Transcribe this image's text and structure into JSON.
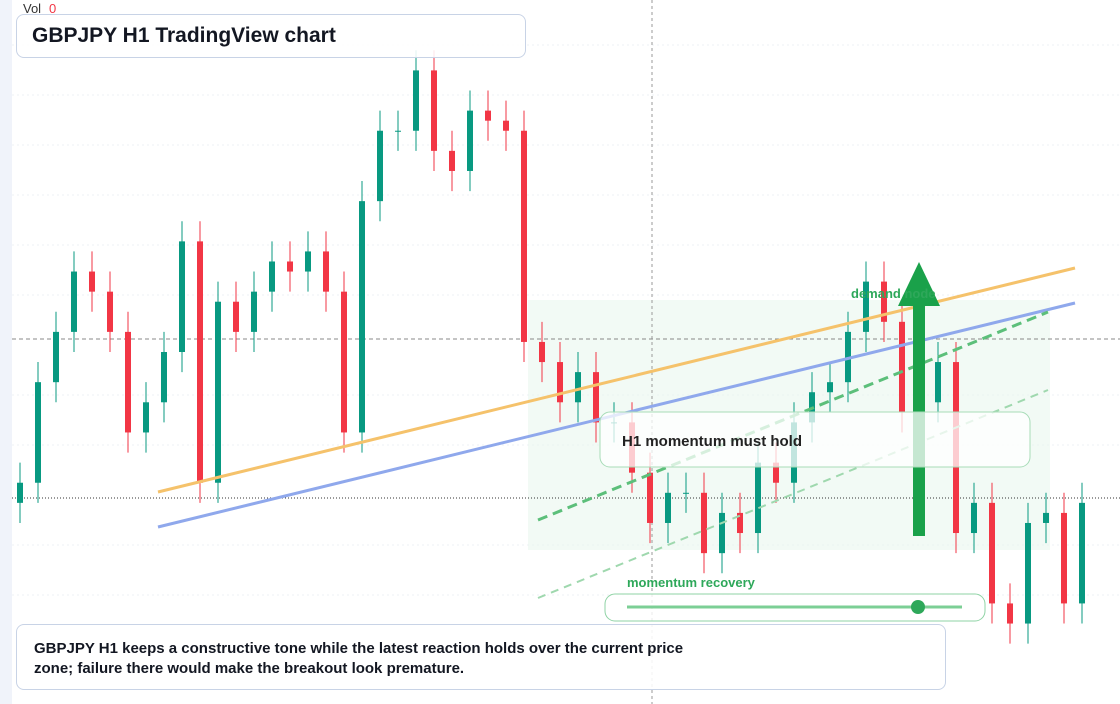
{
  "chart_data": {
    "type": "candlestick",
    "title": "GBPJPY H1 TradingView chart",
    "volume_label": "Vol",
    "volume_value": "0",
    "annotations": {
      "callout": "H1 momentum must hold",
      "zone": "demand node",
      "bar": "momentum recovery"
    },
    "summary": "GBPJPY H1 keeps a constructive tone while the latest reaction holds over the current price zone; failure there would make the breakout look premature.",
    "up_color": "#089981",
    "down_color": "#f23645",
    "ylim": [
      0,
      700
    ],
    "open": [
      200,
      220,
      320,
      370,
      430,
      410,
      370,
      270,
      300,
      350,
      460,
      220,
      400,
      370,
      410,
      440,
      430,
      450,
      410,
      270,
      500,
      570,
      570,
      630,
      550,
      530,
      590,
      580,
      570,
      360,
      340,
      300,
      330,
      280,
      280,
      230,
      180,
      210,
      210,
      150,
      190,
      170,
      240,
      220,
      280,
      310,
      320,
      370,
      420,
      380,
      290,
      300,
      340,
      170,
      200,
      100,
      80,
      180,
      190,
      100
    ],
    "high": [
      240,
      340,
      390,
      450,
      450,
      430,
      390,
      320,
      370,
      480,
      480,
      420,
      420,
      430,
      460,
      460,
      470,
      470,
      430,
      520,
      590,
      590,
      650,
      650,
      570,
      610,
      610,
      600,
      590,
      380,
      360,
      350,
      350,
      300,
      300,
      250,
      230,
      230,
      230,
      210,
      210,
      260,
      260,
      300,
      330,
      340,
      390,
      440,
      440,
      400,
      320,
      360,
      360,
      220,
      220,
      120,
      200,
      210,
      210,
      220
    ],
    "low": [
      180,
      200,
      300,
      350,
      390,
      350,
      250,
      250,
      280,
      330,
      200,
      200,
      350,
      350,
      390,
      410,
      410,
      390,
      250,
      250,
      480,
      550,
      550,
      530,
      510,
      510,
      560,
      550,
      340,
      320,
      280,
      280,
      260,
      260,
      210,
      160,
      160,
      190,
      130,
      130,
      150,
      150,
      200,
      200,
      260,
      290,
      300,
      350,
      360,
      270,
      270,
      280,
      150,
      150,
      80,
      60,
      60,
      160,
      80,
      80
    ],
    "close": [
      220,
      320,
      370,
      430,
      410,
      370,
      270,
      300,
      350,
      460,
      220,
      400,
      370,
      410,
      440,
      430,
      450,
      410,
      270,
      500,
      570,
      570,
      630,
      550,
      530,
      590,
      580,
      570,
      360,
      340,
      300,
      330,
      280,
      280,
      230,
      180,
      210,
      210,
      150,
      190,
      170,
      240,
      220,
      280,
      310,
      320,
      370,
      420,
      380,
      290,
      300,
      340,
      170,
      200,
      100,
      80,
      180,
      190,
      100,
      200
    ]
  }
}
